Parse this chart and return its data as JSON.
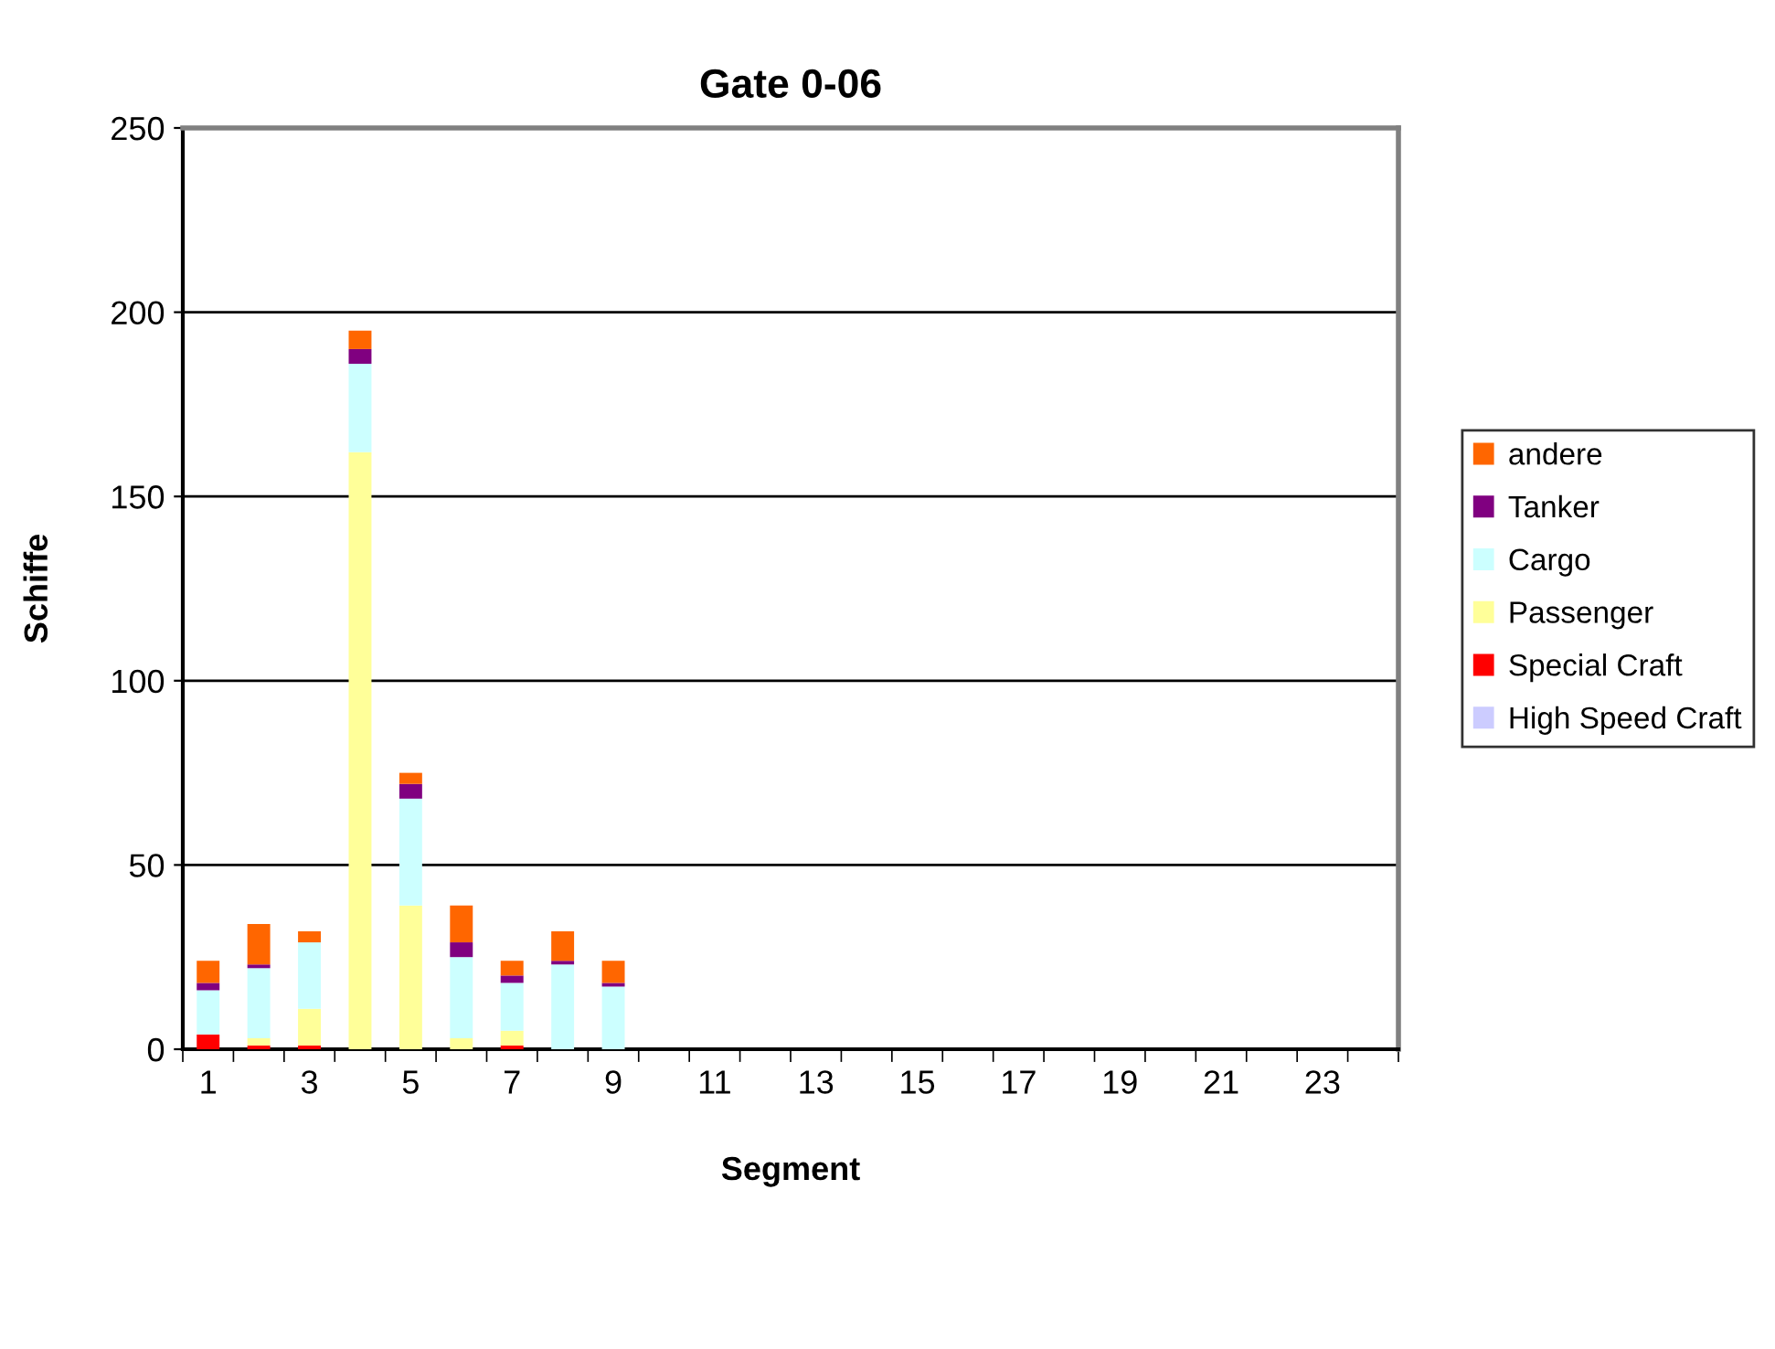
{
  "chart_data": {
    "type": "bar",
    "title": "Gate 0-06",
    "xlabel": "Segment",
    "ylabel": "Schiffe",
    "stacked": true,
    "categories": [
      "1",
      null,
      "3",
      null,
      "5",
      null,
      "7",
      null,
      "9",
      null,
      "11",
      null,
      "13",
      null,
      "15",
      null,
      "17",
      null,
      "19",
      null,
      "21",
      null,
      "23",
      null
    ],
    "series": [
      {
        "name": "High Speed Craft",
        "color": "#ccccff",
        "values": [
          0,
          0,
          0,
          0,
          0,
          0,
          0,
          0,
          0,
          0,
          0,
          0,
          0,
          0,
          0,
          0,
          0,
          0,
          0,
          0,
          0,
          0,
          0,
          0
        ]
      },
      {
        "name": "Special Craft",
        "color": "#ff0000",
        "values": [
          4,
          1,
          1,
          0,
          0,
          0,
          1,
          0,
          0,
          0,
          0,
          0,
          0,
          0,
          0,
          0,
          0,
          0,
          0,
          0,
          0,
          0,
          0,
          0
        ]
      },
      {
        "name": "Passenger",
        "color": "#ffff99",
        "values": [
          0,
          2,
          10,
          162,
          39,
          3,
          4,
          0,
          0,
          0,
          0,
          0,
          0,
          0,
          0,
          0,
          0,
          0,
          0,
          0,
          0,
          0,
          0,
          0
        ]
      },
      {
        "name": "Cargo",
        "color": "#ccffff",
        "values": [
          12,
          19,
          18,
          24,
          29,
          22,
          13,
          23,
          17,
          0,
          0,
          0,
          0,
          0,
          0,
          0,
          0,
          0,
          0,
          0,
          0,
          0,
          0,
          0
        ]
      },
      {
        "name": "Tanker",
        "color": "#800080",
        "values": [
          2,
          1,
          0,
          4,
          4,
          4,
          2,
          1,
          1,
          0,
          0,
          0,
          0,
          0,
          0,
          0,
          0,
          0,
          0,
          0,
          0,
          0,
          0,
          0
        ]
      },
      {
        "name": "andere",
        "color": "#ff6600",
        "values": [
          6,
          11,
          3,
          5,
          3,
          10,
          4,
          8,
          6,
          0,
          0,
          0,
          0,
          0,
          0,
          0,
          0,
          0,
          0,
          0,
          0,
          0,
          0,
          0
        ]
      }
    ],
    "ylim": [
      0,
      250
    ],
    "yticks": [
      0,
      50,
      100,
      150,
      200,
      250
    ],
    "grid": "y",
    "legend": "right"
  }
}
